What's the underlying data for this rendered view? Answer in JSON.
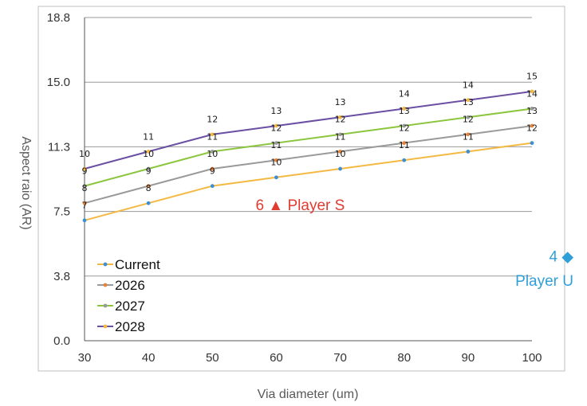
{
  "chart_data": {
    "type": "line",
    "xlabel": "Via diameter (um)",
    "ylabel": "Aspect raio (AR)",
    "x": [
      30,
      40,
      50,
      60,
      70,
      80,
      90,
      100
    ],
    "xlim": [
      30,
      100
    ],
    "ylim": [
      0.0,
      18.8
    ],
    "yticks": [
      "0.0",
      "3.8",
      "7.5",
      "11.3",
      "15.0",
      "18.8"
    ],
    "ytick_values": [
      0,
      3.76,
      7.52,
      11.28,
      15.04,
      18.8
    ],
    "xticks": [
      "30",
      "40",
      "50",
      "60",
      "70",
      "80",
      "90",
      "100"
    ],
    "grid": true,
    "legend": "bottom-left",
    "series": [
      {
        "name": "Current",
        "color": "#f4b942",
        "marker_color": "#3d8fd1",
        "values": [
          7,
          8,
          9,
          9.5,
          10,
          10.5,
          11,
          11.5
        ],
        "labels": [
          "7",
          "8",
          "9",
          "10",
          "10",
          "11",
          "11",
          "12"
        ],
        "label_y": [
          7.7,
          8.7,
          9.7,
          10.2,
          10.7,
          11.2,
          11.7,
          12.2
        ]
      },
      {
        "name": "2026",
        "color": "#9a9a9a",
        "marker_color": "#e8843a",
        "values": [
          8,
          9,
          10,
          10.5,
          11,
          11.5,
          12,
          12.5
        ],
        "labels": [
          "8",
          "9",
          "10",
          "11",
          "11",
          "12",
          "12",
          "13"
        ],
        "label_y": [
          8.7,
          9.7,
          10.7,
          11.2,
          11.7,
          12.2,
          12.7,
          13.2
        ]
      },
      {
        "name": "2027",
        "color": "#8cc63f",
        "marker_color": "#9a9a9a",
        "values": [
          9,
          10,
          11,
          11.5,
          12,
          12.5,
          13,
          13.5
        ],
        "labels": [
          "9",
          "10",
          "11",
          "12",
          "12",
          "13",
          "13",
          "14"
        ],
        "label_y": [
          9.7,
          10.7,
          11.7,
          12.2,
          12.7,
          13.2,
          13.7,
          14.2
        ]
      },
      {
        "name": "2028",
        "color": "#6a4fa3",
        "marker_color": "#f4b942",
        "values": [
          10,
          11,
          12,
          12.5,
          13,
          13.5,
          14,
          14.5
        ],
        "labels": [
          "10",
          "11",
          "12",
          "13",
          "13",
          "14",
          "14",
          "15"
        ],
        "label_y": [
          10.7,
          11.7,
          12.7,
          13.2,
          13.7,
          14.2,
          14.7,
          15.2
        ]
      }
    ],
    "annotations": [
      {
        "text": "6 ▲ Player S",
        "color": "#e03c31",
        "x": 60,
        "y": 7.6
      },
      {
        "text": "4 ◆",
        "color": "#2f9fd8",
        "x": 100,
        "y": 4.6
      },
      {
        "text": "Player U",
        "color": "#2f9fd8",
        "x": 100,
        "y": 3.2
      }
    ]
  }
}
